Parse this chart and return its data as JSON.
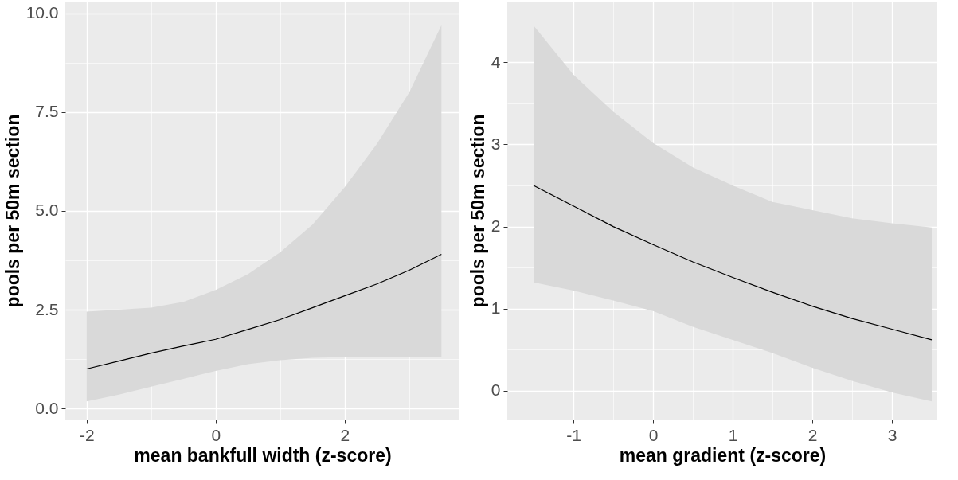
{
  "chart_data": [
    {
      "type": "line",
      "xlabel": "mean bankfull width (z-score)",
      "ylabel": "pools per 50m section",
      "x": [
        -2,
        -1.5,
        -1,
        -0.5,
        0,
        0.5,
        1,
        1.5,
        2,
        2.5,
        3,
        3.5
      ],
      "series": [
        {
          "color": "#000000",
          "values": [
            1.0,
            1.2,
            1.4,
            1.58,
            1.75,
            2.0,
            2.25,
            2.55,
            2.85,
            3.15,
            3.5,
            3.9
          ],
          "lower": [
            0.18,
            0.35,
            0.55,
            0.75,
            0.95,
            1.12,
            1.22,
            1.28,
            1.3,
            1.3,
            1.3,
            1.3
          ],
          "upper": [
            2.45,
            2.5,
            2.55,
            2.7,
            3.0,
            3.4,
            3.95,
            4.65,
            5.6,
            6.7,
            8.0,
            9.7
          ]
        }
      ],
      "xlim": [
        -2.33,
        3.78
      ],
      "ylim": [
        -0.28,
        10.3
      ],
      "xticks": [
        {
          "value": -2,
          "label": "-2"
        },
        {
          "value": -1,
          "label": null
        },
        0,
        {
          "value": 1,
          "label": null
        },
        2,
        {
          "value": 3,
          "label": null
        }
      ],
      "yticks": [
        {
          "value": 0,
          "label": "0.0"
        },
        {
          "value": 1.25,
          "label": null
        },
        2.5,
        {
          "value": 3.75,
          "label": null
        },
        {
          "value": 5,
          "label": "5.0"
        },
        {
          "value": 6.25,
          "label": null
        },
        7.5,
        {
          "value": 8.75,
          "label": null
        },
        {
          "value": 10,
          "label": "10.0"
        }
      ],
      "grid": true
    },
    {
      "type": "line",
      "xlabel": "mean gradient (z-score)",
      "ylabel": "pools per 50m section",
      "x": [
        -1.5,
        -1,
        -0.5,
        0,
        0.5,
        1,
        1.5,
        2,
        2.5,
        3,
        3.5
      ],
      "series": [
        {
          "color": "#000000",
          "values": [
            2.5,
            2.25,
            2.0,
            1.78,
            1.57,
            1.38,
            1.2,
            1.03,
            0.88,
            0.75,
            0.62
          ],
          "lower": [
            1.32,
            1.22,
            1.1,
            0.97,
            0.78,
            0.62,
            0.46,
            0.28,
            0.12,
            -0.02,
            -0.13
          ],
          "upper": [
            4.45,
            3.85,
            3.4,
            3.02,
            2.72,
            2.5,
            2.3,
            2.2,
            2.1,
            2.04,
            1.99
          ]
        }
      ],
      "xlim": [
        -1.83,
        3.57
      ],
      "ylim": [
        -0.35,
        4.74
      ],
      "xticks": [
        {
          "value": -1.5,
          "label": null
        },
        {
          "value": -1,
          "label": "-1"
        },
        {
          "value": -0.5,
          "label": null
        },
        0,
        {
          "value": 0.5,
          "label": null
        },
        1,
        {
          "value": 1.5,
          "label": null
        },
        2,
        {
          "value": 2.5,
          "label": null
        },
        3
      ],
      "yticks": [
        0,
        {
          "value": 0.5,
          "label": null
        },
        1,
        {
          "value": 1.5,
          "label": null
        },
        2,
        {
          "value": 2.5,
          "label": null
        },
        3,
        {
          "value": 3.5,
          "label": null
        },
        4
      ],
      "grid": true
    }
  ]
}
